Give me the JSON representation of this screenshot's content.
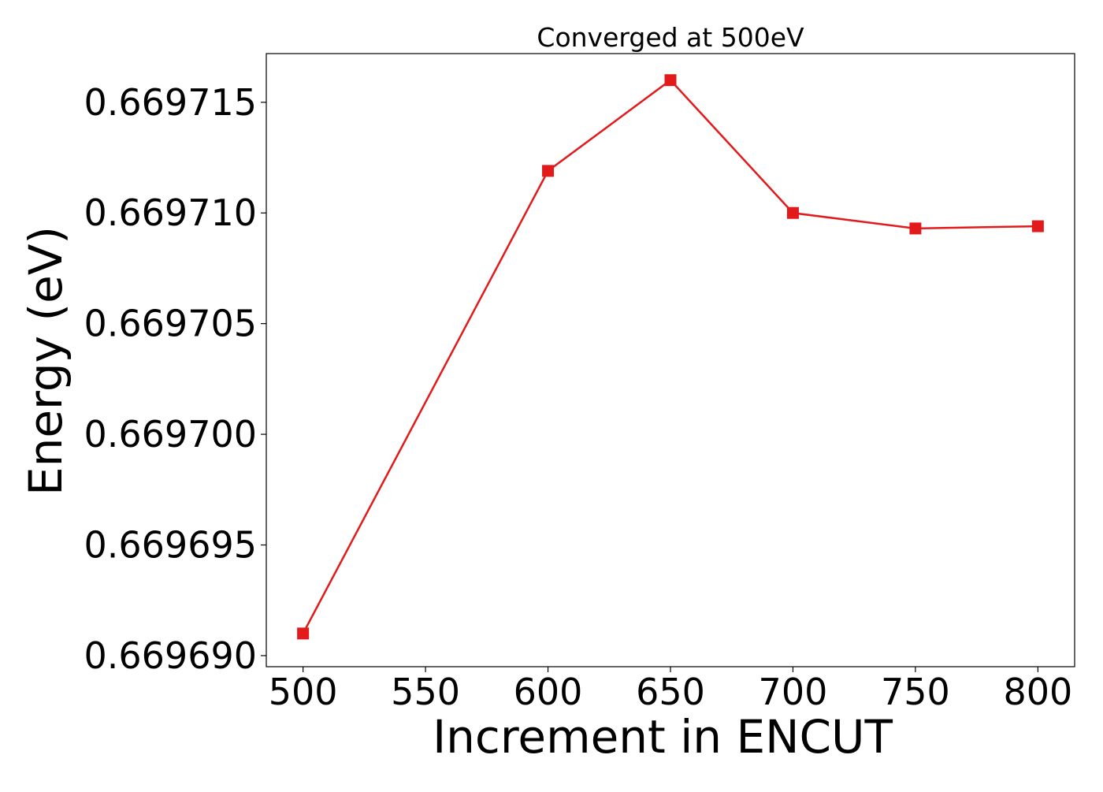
{
  "chart_data": {
    "type": "line",
    "title": "Converged at 500eV",
    "xlabel": "Increment in ENCUT",
    "ylabel": "Energy (eV)",
    "x": [
      500,
      600,
      650,
      700,
      750,
      800
    ],
    "series": [
      {
        "values": [
          0.669691,
          0.6697119,
          0.669716,
          0.66971,
          0.6697093,
          0.6697094
        ],
        "color": "#e31a1c",
        "marker": "square"
      }
    ],
    "xlim": [
      485,
      815
    ],
    "ylim": [
      0.6696895,
      0.6697172
    ],
    "xticks": [
      500,
      550,
      600,
      650,
      700,
      750,
      800
    ],
    "xtick_labels": [
      "500",
      "550",
      "600",
      "650",
      "700",
      "750",
      "800"
    ],
    "yticks": [
      0.66969,
      0.669695,
      0.6697,
      0.669705,
      0.66971,
      0.669715
    ],
    "ytick_labels": [
      "0.669690",
      "0.669695",
      "0.669700",
      "0.669705",
      "0.669710",
      "0.669715"
    ],
    "grid": false,
    "legend": "none"
  }
}
